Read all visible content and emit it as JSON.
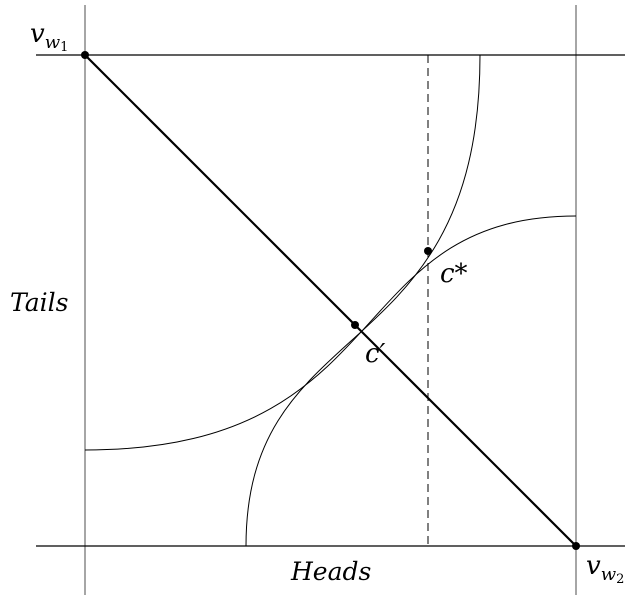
{
  "labels": {
    "v_w1": "v",
    "v_w1_sub": "w",
    "v_w1_subsub": "1",
    "v_w2": "v",
    "v_w2_sub": "w",
    "v_w2_subsub": "2",
    "c_star": "c*",
    "c_prime": "c′",
    "tails": "Tails",
    "heads": "Heads"
  },
  "colors": {
    "line": "#000000",
    "frame": "#808080"
  }
}
